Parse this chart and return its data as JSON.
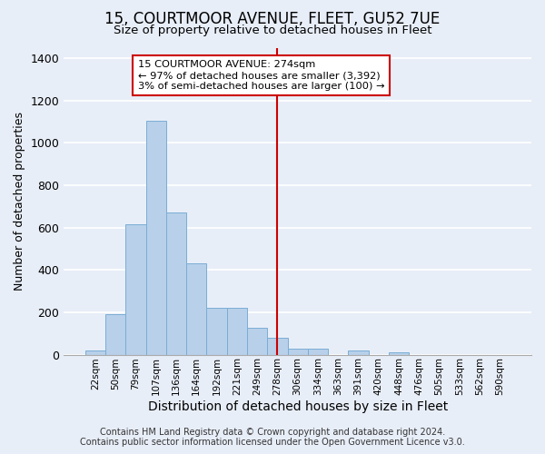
{
  "title": "15, COURTMOOR AVENUE, FLEET, GU52 7UE",
  "subtitle": "Size of property relative to detached houses in Fleet",
  "xlabel": "Distribution of detached houses by size in Fleet",
  "ylabel": "Number of detached properties",
  "footer_line1": "Contains HM Land Registry data © Crown copyright and database right 2024.",
  "footer_line2": "Contains public sector information licensed under the Open Government Licence v3.0.",
  "categories": [
    "22sqm",
    "50sqm",
    "79sqm",
    "107sqm",
    "136sqm",
    "164sqm",
    "192sqm",
    "221sqm",
    "249sqm",
    "278sqm",
    "306sqm",
    "334sqm",
    "363sqm",
    "391sqm",
    "420sqm",
    "448sqm",
    "476sqm",
    "505sqm",
    "533sqm",
    "562sqm",
    "590sqm"
  ],
  "values": [
    18,
    193,
    615,
    1105,
    670,
    430,
    220,
    220,
    125,
    80,
    30,
    30,
    0,
    20,
    0,
    10,
    0,
    0,
    0,
    0,
    0
  ],
  "bar_color": "#b8d0ea",
  "bar_edge_color": "#7aadd4",
  "bg_color": "#e8eef8",
  "grid_color": "#ffffff",
  "vline_x_index": 9,
  "vline_color": "#cc0000",
  "annotation_text": "15 COURTMOOR AVENUE: 274sqm\n← 97% of detached houses are smaller (3,392)\n3% of semi-detached houses are larger (100) →",
  "annotation_box_color": "#cc0000",
  "annotation_bg": "#ffffff",
  "ylim": [
    0,
    1450
  ],
  "yticks": [
    0,
    200,
    400,
    600,
    800,
    1000,
    1200,
    1400
  ],
  "title_fontsize": 12,
  "subtitle_fontsize": 9.5,
  "ylabel_fontsize": 9,
  "xlabel_fontsize": 10,
  "footer_fontsize": 7
}
